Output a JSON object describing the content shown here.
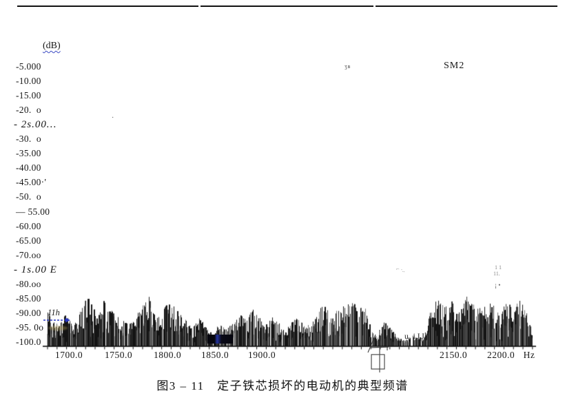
{
  "header": {
    "unit_label": "(dB)",
    "corner_label": "SM2",
    "tiny_mark": "ʒв"
  },
  "caption": "图3 – 11　定子铁芯损坏的电动机的典型频谱",
  "chart_data": {
    "type": "line",
    "subtype": "frequency-spectrum-noise",
    "title": "定子铁芯损坏的电动机的典型频谱 (Typical spectrum of a motor with damaged stator core)",
    "xlabel": "Hz",
    "ylabel": "dB",
    "xlim": [
      1677,
      2240
    ],
    "ylim": [
      -100,
      -5
    ],
    "grid": false,
    "legend": null,
    "x_ticks": [
      "1700.0",
      "1750.0",
      "1800.0",
      "1850.0",
      "1900.0",
      "2150.0",
      "2200.0",
      "Hz"
    ],
    "y_tick_values": [
      -5,
      -10,
      -15,
      -20,
      -25,
      -30,
      -35,
      -40,
      -45,
      -50,
      -55,
      -60,
      -65,
      -70,
      -75,
      -80,
      -85,
      -90,
      -95,
      -100
    ],
    "y_ticks_display": [
      "-5.000",
      "-10.00",
      "-15.00",
      "-20.  o",
      "- 2s.00…",
      "-30.  o",
      "-35.00",
      "-40.00",
      "-45.00·'",
      "-50.  o",
      "— 55.00",
      "-60.00",
      "-65.00",
      "-70.oo",
      "- 1s.00 E",
      "-80.oo",
      "-85.00",
      "-90.00",
      "-95. 0o",
      "-100.0"
    ],
    "noise_floor_db": -99,
    "series": [
      {
        "name": "spectrum peak envelope (Hz, dB)",
        "points": [
          [
            1677,
            -87
          ],
          [
            1682,
            -90
          ],
          [
            1689,
            -93
          ],
          [
            1696,
            -89
          ],
          [
            1704,
            -93
          ],
          [
            1713,
            -87
          ],
          [
            1718,
            -82.5
          ],
          [
            1723,
            -86
          ],
          [
            1729,
            -90
          ],
          [
            1736,
            -83
          ],
          [
            1742,
            -87
          ],
          [
            1750,
            -90
          ],
          [
            1758,
            -92
          ],
          [
            1765,
            -91
          ],
          [
            1776,
            -85
          ],
          [
            1783,
            -82
          ],
          [
            1788,
            -91
          ],
          [
            1797,
            -86
          ],
          [
            1804,
            -84
          ],
          [
            1812,
            -88
          ],
          [
            1819,
            -91
          ],
          [
            1826,
            -94
          ],
          [
            1833,
            -90
          ],
          [
            1840,
            -93
          ],
          [
            1847,
            -95
          ],
          [
            1855,
            -92
          ],
          [
            1862,
            -94
          ],
          [
            1869,
            -92
          ],
          [
            1876,
            -89
          ],
          [
            1883,
            -91
          ],
          [
            1890,
            -87
          ],
          [
            1897,
            -90
          ],
          [
            1904,
            -93
          ],
          [
            1913,
            -90
          ],
          [
            1922,
            -92
          ],
          [
            1930,
            -95
          ],
          [
            1939,
            -91
          ],
          [
            1948,
            -90
          ],
          [
            1956,
            -93
          ],
          [
            1965,
            -92
          ],
          [
            1973,
            -88
          ],
          [
            1982,
            -85
          ],
          [
            1991,
            -89
          ],
          [
            1999,
            -87
          ],
          [
            2008,
            -86
          ],
          [
            2017,
            -84
          ],
          [
            2025,
            -87
          ],
          [
            2034,
            -86
          ],
          [
            2043,
            -95
          ],
          [
            2051,
            -97
          ],
          [
            2060,
            -91
          ],
          [
            2069,
            -94
          ],
          [
            2077,
            -97
          ],
          [
            2086,
            -98
          ],
          [
            2094,
            -96
          ],
          [
            2103,
            -97
          ],
          [
            2112,
            -96
          ],
          [
            2120,
            -88
          ],
          [
            2129,
            -83.5
          ],
          [
            2138,
            -86
          ],
          [
            2146,
            -84
          ],
          [
            2155,
            -88
          ],
          [
            2164,
            -83
          ],
          [
            2172,
            -86
          ],
          [
            2181,
            -87
          ],
          [
            2190,
            -84
          ],
          [
            2198,
            -89
          ],
          [
            2207,
            -85
          ],
          [
            2215,
            -86
          ],
          [
            2224,
            -83.5
          ],
          [
            2232,
            -88
          ],
          [
            2238,
            -93
          ]
        ]
      }
    ]
  },
  "annotations": {
    "handwritten_11h": "11h",
    "u_marks": "u iJJj",
    "scratch_dot": "·",
    "scratch_mid": "⌐ ·..",
    "scratch_right_a": "1 1",
    "scratch_right_b": "11.",
    "scratch_right_c": "¡ •"
  },
  "colors": {
    "ink": "#141414",
    "blue_annotation": "#2a38c0",
    "redaction": "#06060e"
  }
}
